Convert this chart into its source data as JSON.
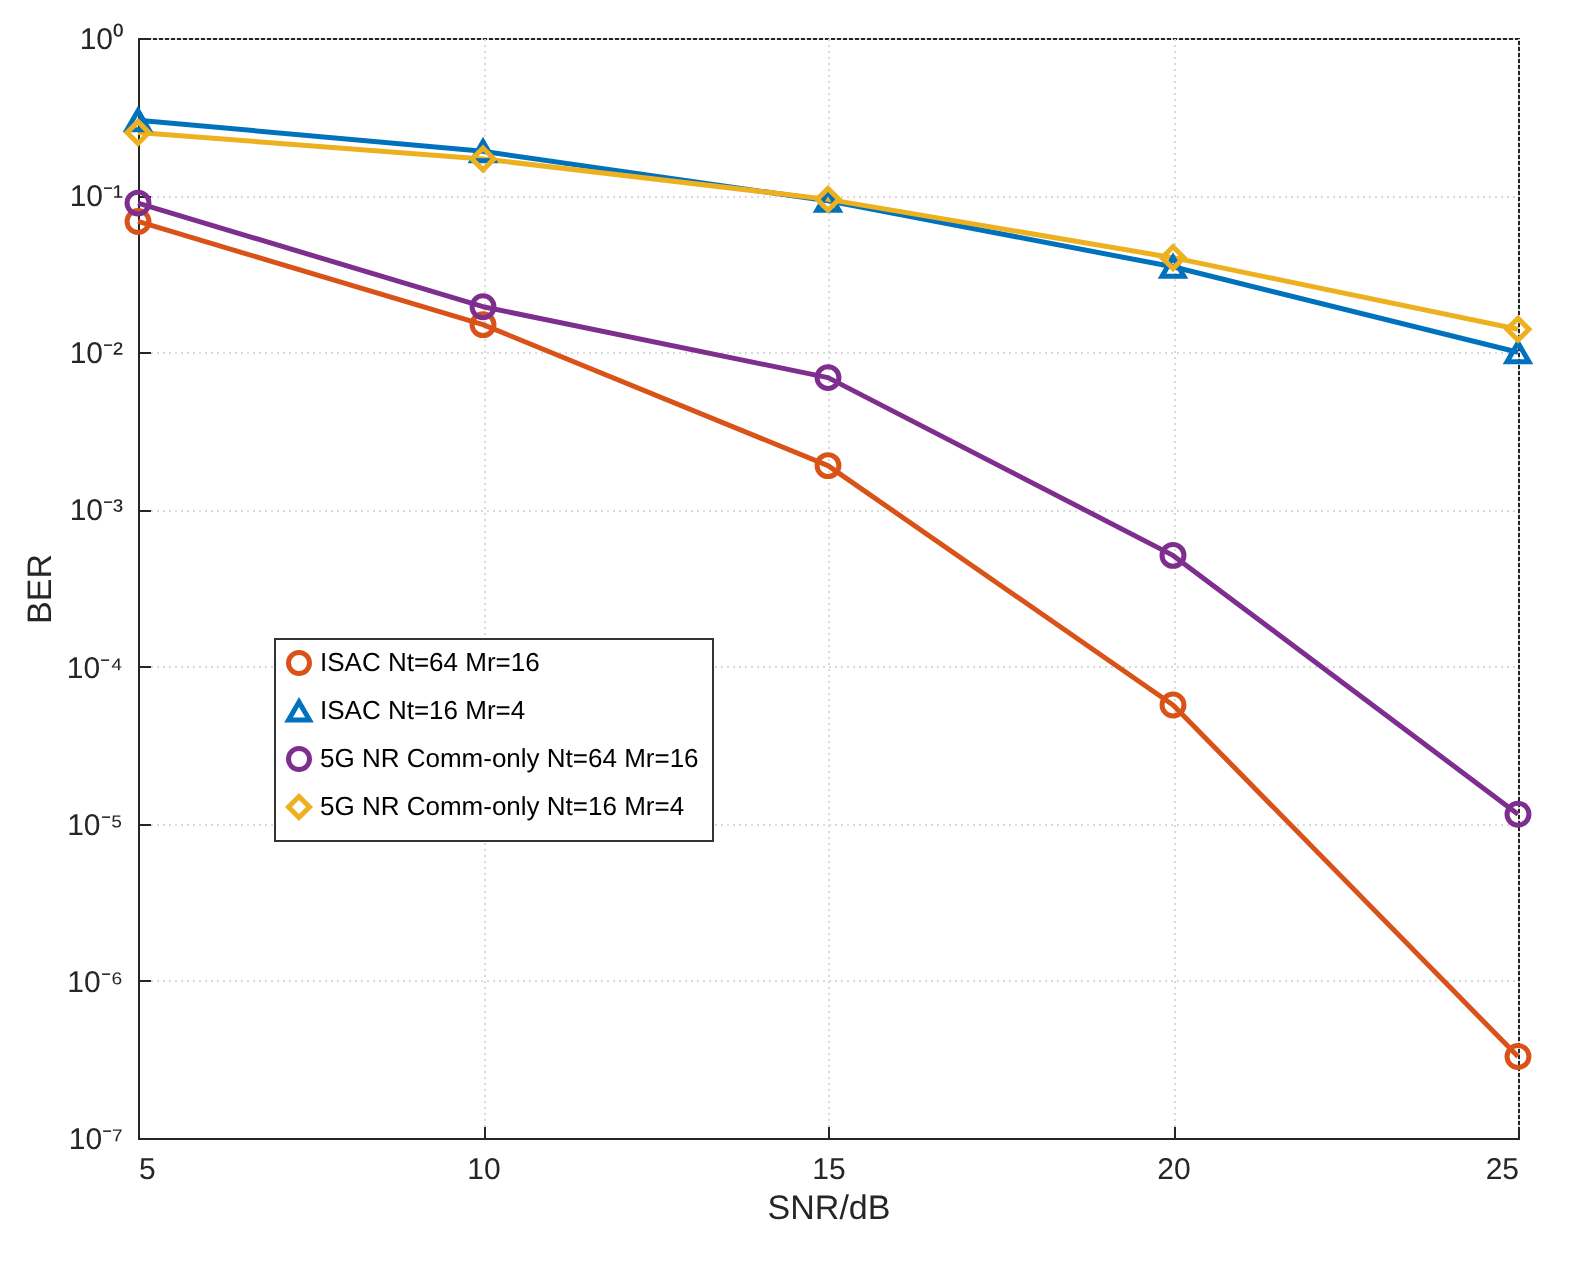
{
  "chart_data": {
    "type": "line",
    "xlabel": "SNR/dB",
    "ylabel": "BER",
    "x": [
      5,
      10,
      15,
      20,
      25
    ],
    "series": [
      {
        "name": "ISAC Nt=64 Mr=16",
        "color": "#d95319",
        "marker": "circle",
        "values": [
          0.068,
          0.015,
          0.0019,
          5.7e-05,
          3.3e-07
        ]
      },
      {
        "name": "ISAC Nt=16 Mr=4",
        "color": "#0072bd",
        "marker": "triangle",
        "values": [
          0.3,
          0.19,
          0.092,
          0.035,
          0.01
        ]
      },
      {
        "name": "5G NR Comm-only Nt=64 Mr=16",
        "color": "#7e2f8e",
        "marker": "circle",
        "values": [
          0.089,
          0.0195,
          0.0069,
          0.00051,
          1.15e-05
        ]
      },
      {
        "name": "5G NR Comm-only Nt=16 Mr=4",
        "color": "#edb120",
        "marker": "diamond",
        "values": [
          0.25,
          0.17,
          0.094,
          0.04,
          0.014
        ]
      }
    ],
    "log": "y",
    "xlim": [
      5,
      25
    ],
    "xticks": [
      5,
      10,
      15,
      20,
      25
    ],
    "ylim": [
      1e-07,
      1
    ],
    "yticks": [
      {
        "value": 1e-07,
        "label": "10⁻⁷"
      },
      {
        "value": 1e-06,
        "label": "10⁻⁶"
      },
      {
        "value": 1e-05,
        "label": "10⁻⁵"
      },
      {
        "value": 0.0001,
        "label": "10⁻⁴"
      },
      {
        "value": 0.001,
        "label": "10⁻³"
      },
      {
        "value": 0.01,
        "label": "10⁻²"
      },
      {
        "value": 0.1,
        "label": "10⁻¹"
      },
      {
        "value": 1,
        "label": "10⁰"
      }
    ],
    "grid": true,
    "legend": "bottom left",
    "line_style": "solid"
  }
}
